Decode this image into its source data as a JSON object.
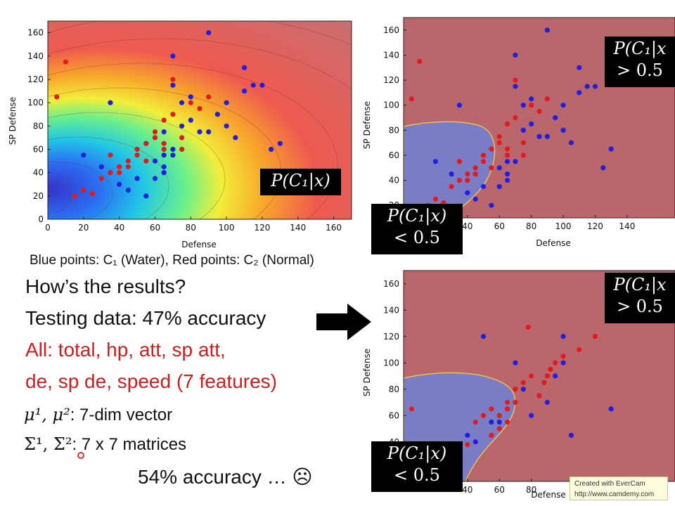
{
  "caption": {
    "text": "Blue points: C₁ (Water), Red points: C₂ (Normal)"
  },
  "lines": {
    "results": "How’s the results?",
    "testing": "Testing data: 47% accuracy",
    "all1": "All: total, hp, att, sp att,",
    "all2": "de, sp de, speed (7 features)",
    "mu_sym": "μ¹, μ²",
    "mu_rest": ": 7-dim vector",
    "sigma_sym": "Σ¹, Σ²",
    "sigma_rest": ": 7 x 7 matrices",
    "accuracy2": "54% accuracy … ☹"
  },
  "overlays": {
    "main_label": "P(C₁|x)",
    "top_right_gt": "P(C₁|x",
    "top_right_gt2": "> 0.5",
    "top_left_lt": "P(C₁|x)",
    "top_left_lt2": "< 0.5",
    "bot_right_gt": "P(C₁|x",
    "bot_right_gt2": "> 0.5",
    "bot_left_lt": "P(C₁|x)",
    "bot_left_lt2": "< 0.5"
  },
  "watermark": {
    "line1": "Created with EverCam",
    "line2": "http://www.camdemy.com"
  },
  "colors": {
    "water": "#1f1fe0",
    "normal": "#e31a1c",
    "region_red": "#b9676d",
    "region_blue": "#7b7cc6",
    "accent": "#d41c1c"
  },
  "chart_data": [
    {
      "type": "scatter",
      "title": "",
      "xlabel": "Defense",
      "ylabel": "SP Defense",
      "xlim": [
        0,
        170
      ],
      "ylim": [
        0,
        170
      ],
      "xticks": [
        0,
        20,
        40,
        60,
        80,
        100,
        120,
        140,
        160
      ],
      "yticks": [
        0,
        20,
        40,
        60,
        80,
        100,
        120,
        140,
        160
      ],
      "background": "gaussian probability contour",
      "series": [
        {
          "name": "Water",
          "color": "#1f1fe0",
          "x": [
            20,
            30,
            45,
            50,
            55,
            60,
            65,
            65,
            70,
            70,
            75,
            80,
            85,
            90,
            90,
            95,
            100,
            100,
            105,
            110,
            110,
            115,
            120,
            125,
            130,
            35,
            40,
            60,
            65,
            70,
            75,
            80,
            55,
            60,
            65,
            70
          ],
          "y": [
            55,
            45,
            25,
            35,
            20,
            50,
            55,
            40,
            140,
            115,
            100,
            105,
            75,
            160,
            75,
            90,
            100,
            80,
            70,
            130,
            110,
            115,
            115,
            60,
            65,
            100,
            30,
            35,
            45,
            55,
            80,
            85,
            65,
            70,
            75,
            60
          ]
        },
        {
          "name": "Normal",
          "color": "#e31a1c",
          "x": [
            5,
            10,
            15,
            20,
            25,
            30,
            35,
            40,
            45,
            50,
            50,
            55,
            60,
            60,
            65,
            65,
            70,
            70,
            75,
            80,
            85,
            90,
            40,
            35,
            45,
            55,
            65,
            75
          ],
          "y": [
            105,
            135,
            20,
            25,
            22,
            35,
            40,
            45,
            50,
            55,
            60,
            65,
            70,
            75,
            60,
            85,
            90,
            120,
            60,
            100,
            95,
            105,
            40,
            55,
            45,
            50,
            65,
            70
          ]
        }
      ]
    },
    {
      "type": "scatter",
      "title": "",
      "xlabel": "Defense",
      "ylabel": "SP Defense",
      "xlim": [
        0,
        170
      ],
      "ylim": [
        10,
        170
      ],
      "xticks": [
        40,
        60,
        80,
        100,
        120,
        140
      ],
      "yticks": [
        20,
        40,
        60,
        80,
        100,
        120,
        140,
        160
      ],
      "background": "decision regions",
      "series": [
        {
          "name": "Water",
          "color": "#1f1fe0",
          "x": [
            20,
            30,
            45,
            50,
            55,
            60,
            65,
            65,
            70,
            70,
            75,
            80,
            85,
            90,
            90,
            95,
            100,
            100,
            105,
            110,
            110,
            115,
            120,
            125,
            130,
            35,
            40,
            60,
            65,
            70,
            75,
            80
          ],
          "y": [
            55,
            45,
            25,
            35,
            20,
            50,
            55,
            40,
            140,
            115,
            100,
            105,
            75,
            160,
            75,
            90,
            100,
            80,
            70,
            130,
            110,
            115,
            115,
            50,
            65,
            100,
            30,
            35,
            45,
            55,
            80,
            85
          ]
        },
        {
          "name": "Normal",
          "color": "#e31a1c",
          "x": [
            5,
            10,
            15,
            20,
            25,
            30,
            35,
            40,
            45,
            50,
            50,
            55,
            60,
            60,
            65,
            65,
            70,
            70,
            75,
            80,
            85,
            90,
            40,
            35,
            45,
            55,
            65,
            75
          ],
          "y": [
            105,
            135,
            20,
            25,
            22,
            35,
            40,
            45,
            50,
            55,
            60,
            65,
            70,
            75,
            60,
            85,
            90,
            120,
            60,
            100,
            95,
            105,
            40,
            55,
            45,
            50,
            65,
            70
          ]
        }
      ]
    },
    {
      "type": "scatter",
      "title": "",
      "xlabel": "Defense",
      "ylabel": "SP Defense",
      "xlim": [
        0,
        170
      ],
      "ylim": [
        10,
        170
      ],
      "xticks": [
        40,
        60,
        80
      ],
      "yticks": [
        40,
        60,
        80,
        100,
        120,
        140,
        160
      ],
      "background": "decision regions",
      "series": [
        {
          "name": "Water",
          "color": "#1f1fe0",
          "x": [
            40,
            45,
            50,
            55,
            60,
            60,
            65,
            70,
            70,
            75,
            80,
            85,
            90,
            95,
            100,
            100,
            105,
            130
          ],
          "y": [
            45,
            40,
            120,
            55,
            60,
            55,
            65,
            70,
            100,
            80,
            60,
            75,
            70,
            90,
            120,
            100,
            45,
            65
          ]
        },
        {
          "name": "Normal",
          "color": "#e31a1c",
          "x": [
            5,
            40,
            45,
            50,
            55,
            60,
            65,
            65,
            70,
            70,
            75,
            78,
            80,
            85,
            88,
            90,
            92,
            95,
            100,
            110,
            120,
            55,
            60,
            65
          ],
          "y": [
            65,
            38,
            55,
            60,
            65,
            60,
            70,
            65,
            70,
            80,
            85,
            127,
            90,
            75,
            85,
            90,
            95,
            100,
            105,
            110,
            120,
            45,
            50,
            55
          ]
        }
      ]
    }
  ]
}
